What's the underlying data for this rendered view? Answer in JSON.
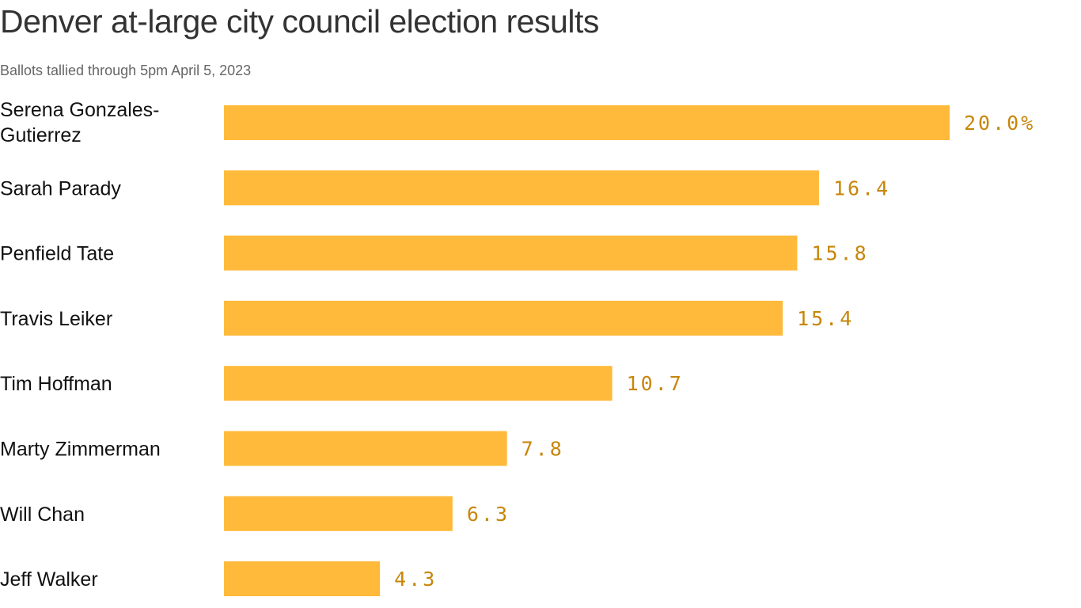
{
  "title": "Denver at-large city council election results",
  "subtitle": "Ballots tallied through 5pm April 5, 2023",
  "colors": {
    "bar": "#FFBA3B",
    "value_label": "#C7860A"
  },
  "chart_data": {
    "type": "bar",
    "orientation": "horizontal",
    "title": "Denver at-large city council election results",
    "subtitle": "Ballots tallied through 5pm April 5, 2023",
    "categories": [
      [
        "Serena Gonzales-",
        "Gutierrez"
      ],
      [
        "Sarah Parady"
      ],
      [
        "Penfield Tate"
      ],
      [
        "Travis Leiker"
      ],
      [
        "Tim Hoffman"
      ],
      [
        "Marty Zimmerman"
      ],
      [
        "Will Chan"
      ],
      [
        "Jeff Walker"
      ]
    ],
    "values": [
      20.0,
      16.4,
      15.8,
      15.4,
      10.7,
      7.8,
      6.3,
      4.3
    ],
    "value_labels": [
      "20.0%",
      "16.4",
      "15.8",
      "15.4",
      "10.7",
      "7.8",
      "6.3",
      "4.3"
    ],
    "xlim": [
      0,
      20
    ],
    "grid": false,
    "xlabel": "",
    "ylabel": ""
  }
}
